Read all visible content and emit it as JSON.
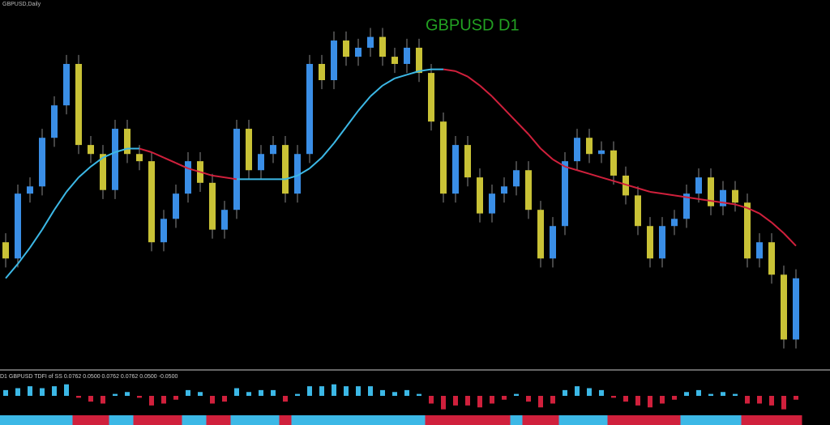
{
  "window_title": "GBPUSD,Daily",
  "chart_data": [
    {
      "type": "candlestick",
      "title": "GBPUSD D1",
      "title_color": "#22a022",
      "up_color": "#3a8ee6",
      "down_color": "#c9c236",
      "ylim": [
        1.2,
        1.4
      ],
      "open": [
        1.27,
        1.261,
        1.297,
        1.301,
        1.328,
        1.346,
        1.369,
        1.324,
        1.319,
        1.299,
        1.333,
        1.319,
        1.315,
        1.27,
        1.283,
        1.297,
        1.315,
        1.303,
        1.277,
        1.288,
        1.333,
        1.31,
        1.319,
        1.324,
        1.297,
        1.319,
        1.369,
        1.36,
        1.382,
        1.373,
        1.378,
        1.384,
        1.373,
        1.369,
        1.378,
        1.364,
        1.337,
        1.297,
        1.324,
        1.306,
        1.286,
        1.297,
        1.301,
        1.31,
        1.288,
        1.261,
        1.279,
        1.315,
        1.328,
        1.319,
        1.321,
        1.307,
        1.296,
        1.279,
        1.261,
        1.279,
        1.283,
        1.297,
        1.306,
        1.29,
        1.299,
        1.292,
        1.261,
        1.27,
        1.252,
        1.216
      ],
      "high": [
        1.275,
        1.302,
        1.306,
        1.333,
        1.351,
        1.374,
        1.374,
        1.329,
        1.324,
        1.338,
        1.338,
        1.324,
        1.32,
        1.288,
        1.302,
        1.32,
        1.32,
        1.308,
        1.293,
        1.338,
        1.338,
        1.324,
        1.329,
        1.329,
        1.324,
        1.374,
        1.374,
        1.387,
        1.387,
        1.383,
        1.389,
        1.389,
        1.378,
        1.383,
        1.383,
        1.369,
        1.342,
        1.329,
        1.329,
        1.311,
        1.302,
        1.306,
        1.315,
        1.315,
        1.293,
        1.284,
        1.32,
        1.333,
        1.333,
        1.326,
        1.326,
        1.312,
        1.301,
        1.284,
        1.284,
        1.288,
        1.302,
        1.311,
        1.311,
        1.304,
        1.304,
        1.297,
        1.275,
        1.275,
        1.257,
        1.255
      ],
      "low": [
        1.256,
        1.256,
        1.292,
        1.296,
        1.323,
        1.341,
        1.319,
        1.314,
        1.294,
        1.294,
        1.314,
        1.31,
        1.265,
        1.265,
        1.278,
        1.292,
        1.298,
        1.272,
        1.272,
        1.283,
        1.305,
        1.305,
        1.314,
        1.292,
        1.292,
        1.314,
        1.355,
        1.355,
        1.368,
        1.368,
        1.373,
        1.368,
        1.364,
        1.364,
        1.359,
        1.332,
        1.292,
        1.292,
        1.301,
        1.281,
        1.281,
        1.292,
        1.296,
        1.283,
        1.256,
        1.256,
        1.274,
        1.31,
        1.314,
        1.314,
        1.302,
        1.291,
        1.274,
        1.256,
        1.256,
        1.274,
        1.278,
        1.292,
        1.285,
        1.285,
        1.287,
        1.256,
        1.256,
        1.247,
        1.211,
        1.211
      ],
      "close": [
        1.261,
        1.297,
        1.301,
        1.328,
        1.346,
        1.369,
        1.324,
        1.319,
        1.299,
        1.333,
        1.319,
        1.315,
        1.27,
        1.283,
        1.297,
        1.315,
        1.303,
        1.277,
        1.288,
        1.333,
        1.31,
        1.319,
        1.324,
        1.297,
        1.319,
        1.369,
        1.36,
        1.382,
        1.373,
        1.378,
        1.384,
        1.373,
        1.369,
        1.378,
        1.364,
        1.337,
        1.297,
        1.324,
        1.306,
        1.286,
        1.297,
        1.301,
        1.31,
        1.288,
        1.261,
        1.279,
        1.315,
        1.328,
        1.319,
        1.321,
        1.307,
        1.296,
        1.279,
        1.261,
        1.279,
        1.283,
        1.297,
        1.306,
        1.29,
        1.299,
        1.292,
        1.261,
        1.27,
        1.252,
        1.216,
        1.25
      ],
      "ma": {
        "rising_color": "#3cb8e6",
        "falling_color": "#d0203c",
        "values": [
          1.25,
          1.258,
          1.267,
          1.277,
          1.288,
          1.298,
          1.306,
          1.312,
          1.317,
          1.32,
          1.322,
          1.322,
          1.32,
          1.317,
          1.314,
          1.311,
          1.309,
          1.307,
          1.306,
          1.305,
          1.305,
          1.305,
          1.305,
          1.305,
          1.307,
          1.311,
          1.317,
          1.325,
          1.334,
          1.343,
          1.351,
          1.357,
          1.361,
          1.363,
          1.365,
          1.366,
          1.366,
          1.365,
          1.362,
          1.357,
          1.351,
          1.344,
          1.337,
          1.33,
          1.322,
          1.316,
          1.312,
          1.31,
          1.308,
          1.306,
          1.304,
          1.302,
          1.3,
          1.298,
          1.297,
          1.296,
          1.295,
          1.294,
          1.293,
          1.292,
          1.291,
          1.289,
          1.286,
          1.281,
          1.275,
          1.268
        ]
      }
    },
    {
      "type": "bar",
      "title": "D1 GBPUSD TDFI of SS 0.0762 0.0500 0.0762 0.0762 0.0500 -0.0500",
      "positive_color": "#3cb8e6",
      "negative_color": "#d0203c",
      "ylim": [
        -0.08,
        0.08
      ],
      "values": [
        0.03,
        0.04,
        0.05,
        0.04,
        0.05,
        0.06,
        -0.01,
        -0.03,
        -0.04,
        0.01,
        0.02,
        -0.01,
        -0.05,
        -0.04,
        -0.02,
        0.03,
        0.02,
        -0.04,
        -0.03,
        0.04,
        0.02,
        0.03,
        0.03,
        -0.03,
        0.01,
        0.05,
        0.05,
        0.06,
        0.05,
        0.05,
        0.05,
        0.03,
        0.02,
        0.03,
        0.01,
        -0.04,
        -0.07,
        -0.05,
        -0.05,
        -0.06,
        -0.04,
        -0.02,
        0.01,
        -0.03,
        -0.06,
        -0.04,
        0.03,
        0.05,
        0.04,
        0.03,
        -0.01,
        -0.03,
        -0.05,
        -0.06,
        -0.04,
        -0.02,
        0.02,
        0.03,
        0.01,
        0.02,
        0.01,
        -0.04,
        -0.04,
        -0.05,
        -0.07,
        -0.02
      ]
    }
  ]
}
